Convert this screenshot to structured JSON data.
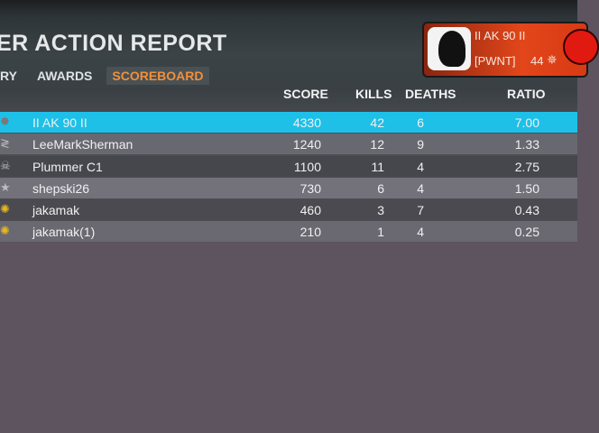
{
  "header": {
    "title": "ER ACTION REPORT",
    "tabs": [
      {
        "label": "RY",
        "active": false
      },
      {
        "label": "AWARDS",
        "active": false
      },
      {
        "label": "SCOREBOARD",
        "active": true
      }
    ]
  },
  "player_card": {
    "name": "II AK 90 II",
    "clan_tag": "[PWNT]",
    "rank": "44",
    "rank_icon": "rank-emblem-icon",
    "accent": "#e2461a"
  },
  "columns": {
    "score": "SCORE",
    "kills": "KILLS",
    "deaths": "DEATHS",
    "ratio": "RATIO"
  },
  "rows": [
    {
      "icon": "rank-emblem-icon",
      "name": "II AK 90 II",
      "score": "4330",
      "kills": "42",
      "deaths": "6",
      "ratio": "7.00",
      "highlight": true
    },
    {
      "icon": "chevron-rank-icon",
      "name": "LeeMarkSherman",
      "score": "1240",
      "kills": "12",
      "deaths": "9",
      "ratio": "1.33"
    },
    {
      "icon": "skull-rank-icon",
      "name": "Plummer C1",
      "score": "1100",
      "kills": "11",
      "deaths": "4",
      "ratio": "2.75"
    },
    {
      "icon": "star-rank-icon",
      "name": "shepski26",
      "score": "730",
      "kills": "6",
      "deaths": "4",
      "ratio": "1.50"
    },
    {
      "icon": "gold-leaf-icon",
      "name": "jakamak",
      "score": "460",
      "kills": "3",
      "deaths": "7",
      "ratio": "0.43"
    },
    {
      "icon": "gold-leaf-icon",
      "name": "jakamak(1)",
      "score": "210",
      "kills": "1",
      "deaths": "4",
      "ratio": "0.25"
    }
  ],
  "colors": {
    "highlight_row": "#1ec0e8",
    "tab_active": "#f0903a"
  }
}
